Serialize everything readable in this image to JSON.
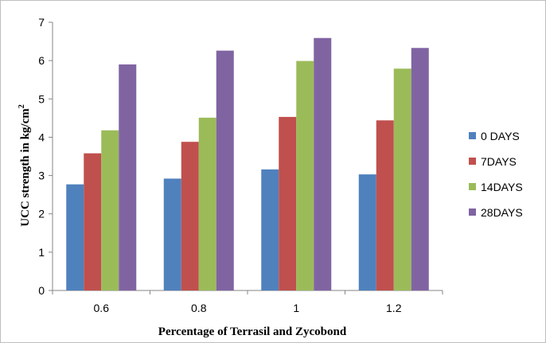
{
  "chart_data": {
    "type": "bar",
    "categories": [
      "0.6",
      "0.8",
      "1",
      "1.2"
    ],
    "series": [
      {
        "name": "0 DAYS",
        "color": "#4f81bd",
        "values": [
          2.77,
          2.92,
          3.16,
          3.03
        ]
      },
      {
        "name": "7DAYS",
        "color": "#c0504d",
        "values": [
          3.58,
          3.88,
          4.53,
          4.44
        ]
      },
      {
        "name": "14DAYS",
        "color": "#9bbb59",
        "values": [
          4.18,
          4.51,
          5.99,
          5.79
        ]
      },
      {
        "name": "28DAYS",
        "color": "#8064a2",
        "values": [
          5.9,
          6.26,
          6.59,
          6.33
        ]
      }
    ],
    "yticks": [
      "0",
      "1",
      "2",
      "3",
      "4",
      "5",
      "6",
      "7"
    ],
    "ylim": [
      0,
      7
    ],
    "xlabel": "Percentage of Terrasil  and Zycobond",
    "ylabel_main": "UCC  strength in kg/cm",
    "ylabel_sup": "2",
    "legend_position": "right",
    "grid": false
  }
}
